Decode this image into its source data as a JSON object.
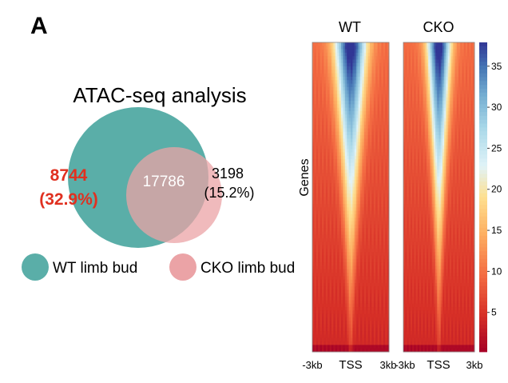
{
  "panel_label": "A",
  "chart_data": [
    {
      "type": "venn",
      "title": "ATAC-seq analysis",
      "sets": [
        {
          "name": "WT limb bud",
          "only_count": "8744",
          "only_percent": "(32.9%)",
          "color": "#5aaea8"
        },
        {
          "name": "CKO limb bud",
          "only_count": "3198",
          "only_percent": "(15.2%)",
          "color": "#eba3a6"
        }
      ],
      "overlap": "17786",
      "highlight_color": "#e03020"
    },
    {
      "type": "heatmap",
      "panels": [
        "WT",
        "CKO"
      ],
      "ylabel": "Genes",
      "xticks": [
        "-3kb",
        "TSS",
        "3kb"
      ],
      "colorbar": {
        "min": 0.2,
        "max": 37.9,
        "ticks": [
          5,
          10,
          15,
          20,
          25,
          30,
          35
        ],
        "colormap": "RdYlBu_r"
      }
    }
  ]
}
